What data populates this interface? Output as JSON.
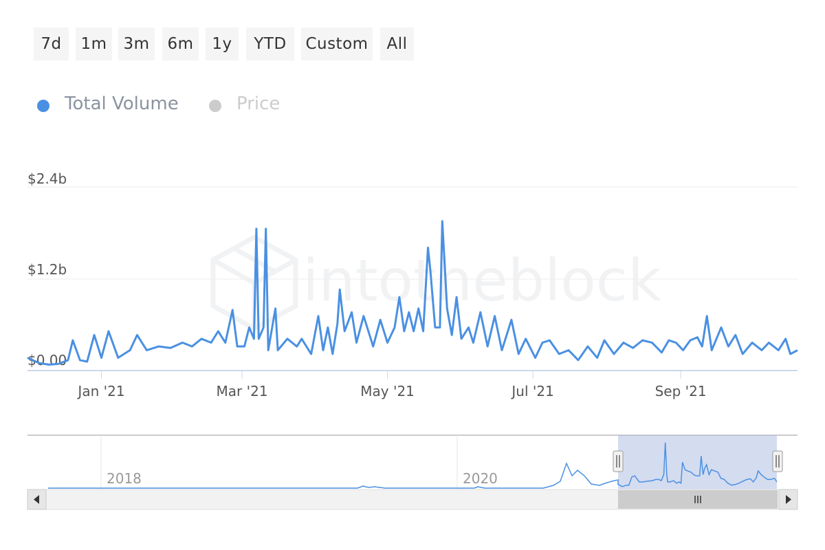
{
  "range_selector": {
    "buttons": [
      "7d",
      "1m",
      "3m",
      "6m",
      "1y",
      "YTD",
      "Custom",
      "All"
    ]
  },
  "legend": {
    "items": [
      {
        "label": "Total Volume",
        "color": "#4a90e2",
        "active": true
      },
      {
        "label": "Price",
        "color": "#cccccc",
        "active": false
      }
    ]
  },
  "watermark": "intotheblock",
  "navigator": {
    "labels": [
      "2018",
      "2020"
    ]
  },
  "chart_data": {
    "type": "line",
    "series": [
      {
        "name": "Total Volume",
        "color": "#4a90e2"
      }
    ],
    "y_ticks": [
      "$0.00",
      "$1.2b",
      "$2.4b"
    ],
    "ylim": [
      0,
      2.4
    ],
    "x_ticks": [
      "Jan '21",
      "Mar '21",
      "May '21",
      "Jul '21",
      "Sep '21"
    ],
    "x_tick_dates": [
      "2021-01-01",
      "2021-03-01",
      "2021-05-01",
      "2021-07-01",
      "2021-09-01"
    ],
    "keypoints": [
      [
        "2020-12-01",
        0.15
      ],
      [
        "2020-12-06",
        0.08
      ],
      [
        "2020-12-10",
        0.06
      ],
      [
        "2020-12-14",
        0.07
      ],
      [
        "2020-12-18",
        0.12
      ],
      [
        "2020-12-20",
        0.38
      ],
      [
        "2020-12-23",
        0.12
      ],
      [
        "2020-12-26",
        0.1
      ],
      [
        "2020-12-29",
        0.45
      ],
      [
        "2021-01-01",
        0.15
      ],
      [
        "2021-01-04",
        0.5
      ],
      [
        "2021-01-08",
        0.15
      ],
      [
        "2021-01-13",
        0.25
      ],
      [
        "2021-01-16",
        0.45
      ],
      [
        "2021-01-20",
        0.25
      ],
      [
        "2021-01-25",
        0.3
      ],
      [
        "2021-01-30",
        0.28
      ],
      [
        "2021-02-04",
        0.35
      ],
      [
        "2021-02-08",
        0.3
      ],
      [
        "2021-02-12",
        0.4
      ],
      [
        "2021-02-16",
        0.35
      ],
      [
        "2021-02-19",
        0.5
      ],
      [
        "2021-02-22",
        0.35
      ],
      [
        "2021-02-25",
        0.78
      ],
      [
        "2021-02-27",
        0.3
      ],
      [
        "2021-03-02",
        0.3
      ],
      [
        "2021-03-04",
        0.55
      ],
      [
        "2021-03-06",
        0.4
      ],
      [
        "2021-03-07",
        1.85
      ],
      [
        "2021-03-08",
        0.4
      ],
      [
        "2021-03-10",
        0.55
      ],
      [
        "2021-03-11",
        1.85
      ],
      [
        "2021-03-12",
        0.25
      ],
      [
        "2021-03-15",
        0.8
      ],
      [
        "2021-03-16",
        0.25
      ],
      [
        "2021-03-20",
        0.4
      ],
      [
        "2021-03-24",
        0.3
      ],
      [
        "2021-03-26",
        0.4
      ],
      [
        "2021-03-30",
        0.2
      ],
      [
        "2021-04-02",
        0.7
      ],
      [
        "2021-04-04",
        0.25
      ],
      [
        "2021-04-06",
        0.55
      ],
      [
        "2021-04-08",
        0.2
      ],
      [
        "2021-04-10",
        0.6
      ],
      [
        "2021-04-11",
        1.05
      ],
      [
        "2021-04-13",
        0.5
      ],
      [
        "2021-04-16",
        0.75
      ],
      [
        "2021-04-18",
        0.35
      ],
      [
        "2021-04-21",
        0.7
      ],
      [
        "2021-04-25",
        0.3
      ],
      [
        "2021-04-28",
        0.65
      ],
      [
        "2021-05-01",
        0.35
      ],
      [
        "2021-05-04",
        0.55
      ],
      [
        "2021-05-06",
        0.95
      ],
      [
        "2021-05-08",
        0.5
      ],
      [
        "2021-05-10",
        0.75
      ],
      [
        "2021-05-12",
        0.5
      ],
      [
        "2021-05-14",
        0.8
      ],
      [
        "2021-05-16",
        0.5
      ],
      [
        "2021-05-18",
        1.6
      ],
      [
        "2021-05-19",
        1.3
      ],
      [
        "2021-05-21",
        0.55
      ],
      [
        "2021-05-23",
        0.55
      ],
      [
        "2021-05-24",
        1.95
      ],
      [
        "2021-05-26",
        0.8
      ],
      [
        "2021-05-28",
        0.45
      ],
      [
        "2021-05-30",
        0.95
      ],
      [
        "2021-06-01",
        0.4
      ],
      [
        "2021-06-04",
        0.55
      ],
      [
        "2021-06-06",
        0.35
      ],
      [
        "2021-06-09",
        0.75
      ],
      [
        "2021-06-12",
        0.3
      ],
      [
        "2021-06-15",
        0.7
      ],
      [
        "2021-06-18",
        0.25
      ],
      [
        "2021-06-22",
        0.65
      ],
      [
        "2021-06-25",
        0.2
      ],
      [
        "2021-06-28",
        0.4
      ],
      [
        "2021-07-02",
        0.15
      ],
      [
        "2021-07-05",
        0.35
      ],
      [
        "2021-07-08",
        0.38
      ],
      [
        "2021-07-12",
        0.2
      ],
      [
        "2021-07-16",
        0.25
      ],
      [
        "2021-07-20",
        0.12
      ],
      [
        "2021-07-24",
        0.3
      ],
      [
        "2021-07-28",
        0.15
      ],
      [
        "2021-07-31",
        0.38
      ],
      [
        "2021-08-04",
        0.2
      ],
      [
        "2021-08-08",
        0.35
      ],
      [
        "2021-08-12",
        0.28
      ],
      [
        "2021-08-16",
        0.38
      ],
      [
        "2021-08-20",
        0.35
      ],
      [
        "2021-08-24",
        0.22
      ],
      [
        "2021-08-27",
        0.38
      ],
      [
        "2021-08-30",
        0.35
      ],
      [
        "2021-09-02",
        0.25
      ],
      [
        "2021-09-05",
        0.38
      ],
      [
        "2021-09-08",
        0.42
      ],
      [
        "2021-09-10",
        0.3
      ],
      [
        "2021-09-12",
        0.7
      ],
      [
        "2021-09-14",
        0.25
      ],
      [
        "2021-09-18",
        0.55
      ],
      [
        "2021-09-21",
        0.3
      ],
      [
        "2021-09-24",
        0.45
      ],
      [
        "2021-09-27",
        0.2
      ],
      [
        "2021-10-01",
        0.35
      ],
      [
        "2021-10-05",
        0.25
      ],
      [
        "2021-10-08",
        0.35
      ],
      [
        "2021-10-12",
        0.25
      ],
      [
        "2021-10-15",
        0.4
      ],
      [
        "2021-10-17",
        0.2
      ],
      [
        "2021-10-20",
        0.25
      ]
    ]
  }
}
